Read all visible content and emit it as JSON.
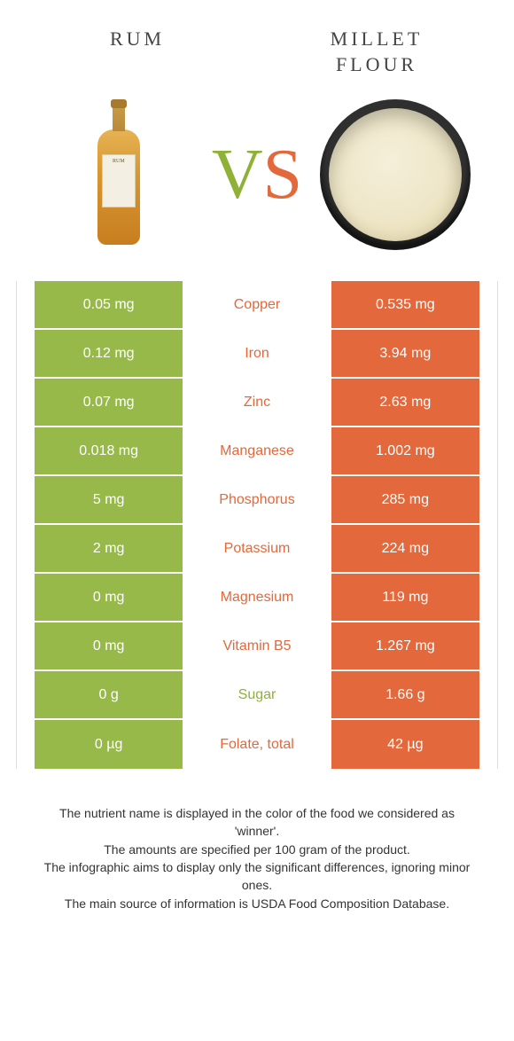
{
  "header": {
    "left_title": "Rum",
    "right_title": "Millet flour",
    "vs_v": "V",
    "vs_s": "S"
  },
  "colors": {
    "left_cell_bg": "#97b94a",
    "right_cell_bg": "#e3683b",
    "nutrient_orange": "#e3683b",
    "nutrient_green": "#8fb138"
  },
  "rows": [
    {
      "left": "0.05 mg",
      "nutrient": "Copper",
      "right": "0.535 mg",
      "winner": "right"
    },
    {
      "left": "0.12 mg",
      "nutrient": "Iron",
      "right": "3.94 mg",
      "winner": "right"
    },
    {
      "left": "0.07 mg",
      "nutrient": "Zinc",
      "right": "2.63 mg",
      "winner": "right"
    },
    {
      "left": "0.018 mg",
      "nutrient": "Manganese",
      "right": "1.002 mg",
      "winner": "right"
    },
    {
      "left": "5 mg",
      "nutrient": "Phosphorus",
      "right": "285 mg",
      "winner": "right"
    },
    {
      "left": "2 mg",
      "nutrient": "Potassium",
      "right": "224 mg",
      "winner": "right"
    },
    {
      "left": "0 mg",
      "nutrient": "Magnesium",
      "right": "119 mg",
      "winner": "right"
    },
    {
      "left": "0 mg",
      "nutrient": "Vitamin B5",
      "right": "1.267 mg",
      "winner": "right"
    },
    {
      "left": "0 g",
      "nutrient": "Sugar",
      "right": "1.66 g",
      "winner": "left"
    },
    {
      "left": "0 µg",
      "nutrient": "Folate, total",
      "right": "42 µg",
      "winner": "right"
    }
  ],
  "footer": {
    "line1": "The nutrient name is displayed in the color of the food we considered as 'winner'.",
    "line2": "The amounts are specified per 100 gram of the product.",
    "line3": "The infographic aims to display only the significant differences, ignoring minor ones.",
    "line4": "The main source of information is USDA Food Composition Database."
  },
  "bottle_label": "RUM"
}
